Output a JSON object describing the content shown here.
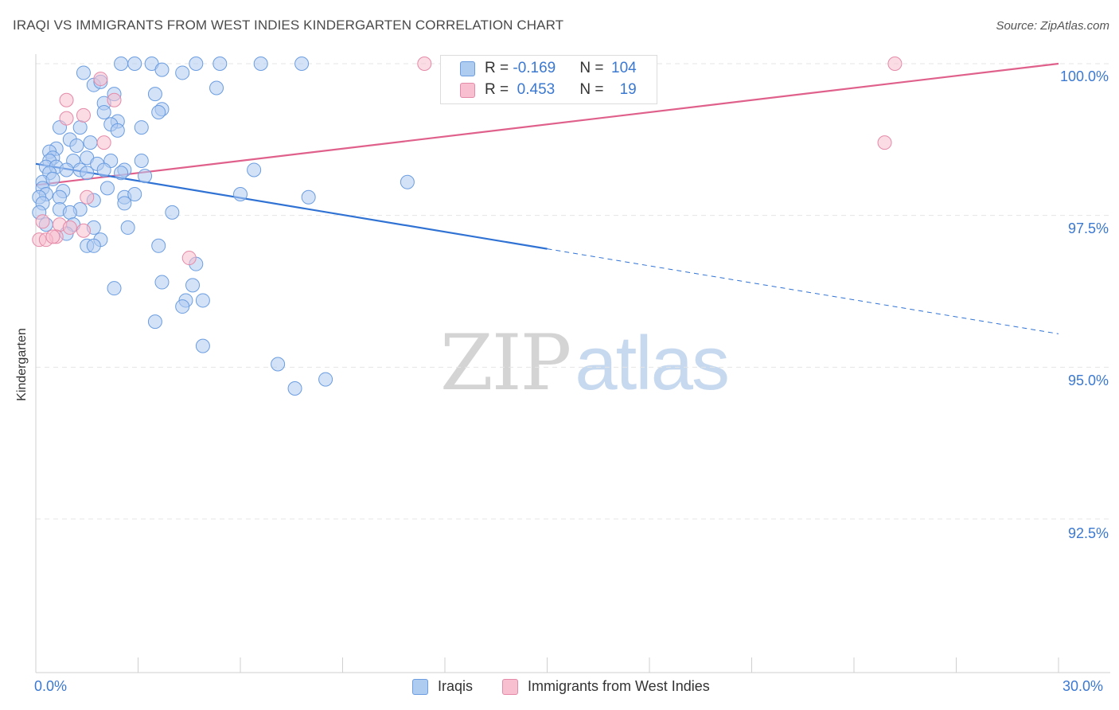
{
  "title": "IRAQI VS IMMIGRANTS FROM WEST INDIES KINDERGARTEN CORRELATION CHART",
  "source": "Source: ZipAtlas.com",
  "watermark": {
    "zip": "ZIP",
    "atlas": "atlas"
  },
  "legend": {
    "series1": {
      "r_label": "R = ",
      "r_value": "-0.169",
      "n_label": "N = ",
      "n_value": "104"
    },
    "series2": {
      "r_label": "R = ",
      "r_value": " 0.453",
      "n_label": "N = ",
      "n_value": "19"
    }
  },
  "bottom_legend": {
    "s1": "Iraqis",
    "s2": "Immigrants from West Indies"
  },
  "colors": {
    "blue_fill": "#aecbf0",
    "blue_stroke": "#6b9de0",
    "blue_line": "#2f72d4",
    "pink_fill": "#f7bfd0",
    "pink_stroke": "#e48aa8",
    "pink_line": "#e0608c",
    "tick_text": "#3b78d0",
    "grid": "#e5e5e5"
  },
  "chart_data": {
    "type": "scatter",
    "title": "IRAQI VS IMMIGRANTS FROM WEST INDIES KINDERGARTEN CORRELATION CHART",
    "xlabel": "",
    "ylabel": "Kindergarten",
    "xlim": [
      0,
      30
    ],
    "ylim": [
      90.0,
      100.25
    ],
    "x_tick_labels": [
      "0.0%",
      "30.0%"
    ],
    "y_ticks": [
      92.5,
      95.0,
      97.5,
      100.0
    ],
    "y_tick_labels": [
      "92.5%",
      "95.0%",
      "97.5%",
      "100.0%"
    ],
    "series": [
      {
        "name": "Iraqis",
        "R": -0.169,
        "N": 104,
        "trend": {
          "x_start": 0,
          "y_start": 98.35,
          "x_solid_end": 15.0,
          "y_solid_end": 96.95,
          "x_end": 30,
          "y_end": 95.55
        },
        "points": [
          [
            2.5,
            100.0
          ],
          [
            2.9,
            100.0
          ],
          [
            3.4,
            100.0
          ],
          [
            4.7,
            100.0
          ],
          [
            5.4,
            100.0
          ],
          [
            6.6,
            100.0
          ],
          [
            7.8,
            100.0
          ],
          [
            1.4,
            99.85
          ],
          [
            3.7,
            99.9
          ],
          [
            4.3,
            99.85
          ],
          [
            1.7,
            99.65
          ],
          [
            1.9,
            99.7
          ],
          [
            5.3,
            99.6
          ],
          [
            2.3,
            99.5
          ],
          [
            3.5,
            99.5
          ],
          [
            2.0,
            99.35
          ],
          [
            3.7,
            99.25
          ],
          [
            2.0,
            99.2
          ],
          [
            3.6,
            99.2
          ],
          [
            2.4,
            99.05
          ],
          [
            2.2,
            99.0
          ],
          [
            1.3,
            98.95
          ],
          [
            0.7,
            98.95
          ],
          [
            3.1,
            98.95
          ],
          [
            2.4,
            98.9
          ],
          [
            1.0,
            98.75
          ],
          [
            1.6,
            98.7
          ],
          [
            1.2,
            98.65
          ],
          [
            0.6,
            98.6
          ],
          [
            0.4,
            98.55
          ],
          [
            0.5,
            98.45
          ],
          [
            0.4,
            98.4
          ],
          [
            1.1,
            98.4
          ],
          [
            1.5,
            98.45
          ],
          [
            2.2,
            98.4
          ],
          [
            3.1,
            98.4
          ],
          [
            1.8,
            98.35
          ],
          [
            0.3,
            98.3
          ],
          [
            0.6,
            98.3
          ],
          [
            0.9,
            98.25
          ],
          [
            1.3,
            98.25
          ],
          [
            2.0,
            98.25
          ],
          [
            2.6,
            98.25
          ],
          [
            6.4,
            98.25
          ],
          [
            0.4,
            98.2
          ],
          [
            1.5,
            98.2
          ],
          [
            2.5,
            98.2
          ],
          [
            3.2,
            98.15
          ],
          [
            0.2,
            98.05
          ],
          [
            0.5,
            98.1
          ],
          [
            10.9,
            98.05
          ],
          [
            0.2,
            97.95
          ],
          [
            0.8,
            97.9
          ],
          [
            2.1,
            97.95
          ],
          [
            0.3,
            97.85
          ],
          [
            0.1,
            97.8
          ],
          [
            0.7,
            97.8
          ],
          [
            2.6,
            97.8
          ],
          [
            2.9,
            97.85
          ],
          [
            6.0,
            97.85
          ],
          [
            8.0,
            97.8
          ],
          [
            1.7,
            97.75
          ],
          [
            2.6,
            97.7
          ],
          [
            0.2,
            97.7
          ],
          [
            0.7,
            97.6
          ],
          [
            1.3,
            97.6
          ],
          [
            0.1,
            97.55
          ],
          [
            1.0,
            97.55
          ],
          [
            4.0,
            97.55
          ],
          [
            0.3,
            97.35
          ],
          [
            1.1,
            97.35
          ],
          [
            1.7,
            97.3
          ],
          [
            2.7,
            97.3
          ],
          [
            0.9,
            97.2
          ],
          [
            1.9,
            97.1
          ],
          [
            1.5,
            97.0
          ],
          [
            1.7,
            97.0
          ],
          [
            3.6,
            97.0
          ],
          [
            4.7,
            96.7
          ],
          [
            2.3,
            96.3
          ],
          [
            3.7,
            96.4
          ],
          [
            4.6,
            96.35
          ],
          [
            4.4,
            96.1
          ],
          [
            4.9,
            96.1
          ],
          [
            4.3,
            96.0
          ],
          [
            3.5,
            95.75
          ],
          [
            4.9,
            95.35
          ],
          [
            7.1,
            95.05
          ],
          [
            7.6,
            94.65
          ],
          [
            8.5,
            94.8
          ]
        ]
      },
      {
        "name": "Immigrants from West Indies",
        "R": 0.453,
        "N": 19,
        "trend": {
          "x_start": 0,
          "y_start": 98.0,
          "x_end": 30,
          "y_end": 100.0
        },
        "points": [
          [
            11.4,
            100.0
          ],
          [
            25.2,
            100.0
          ],
          [
            1.9,
            99.75
          ],
          [
            0.9,
            99.4
          ],
          [
            2.3,
            99.4
          ],
          [
            1.4,
            99.15
          ],
          [
            0.9,
            99.1
          ],
          [
            24.9,
            98.7
          ],
          [
            2.0,
            98.7
          ],
          [
            1.5,
            97.8
          ],
          [
            0.2,
            97.4
          ],
          [
            0.7,
            97.35
          ],
          [
            1.0,
            97.3
          ],
          [
            1.4,
            97.25
          ],
          [
            0.6,
            97.15
          ],
          [
            0.1,
            97.1
          ],
          [
            0.3,
            97.1
          ],
          [
            0.5,
            97.15
          ],
          [
            4.5,
            96.8
          ]
        ]
      }
    ]
  }
}
